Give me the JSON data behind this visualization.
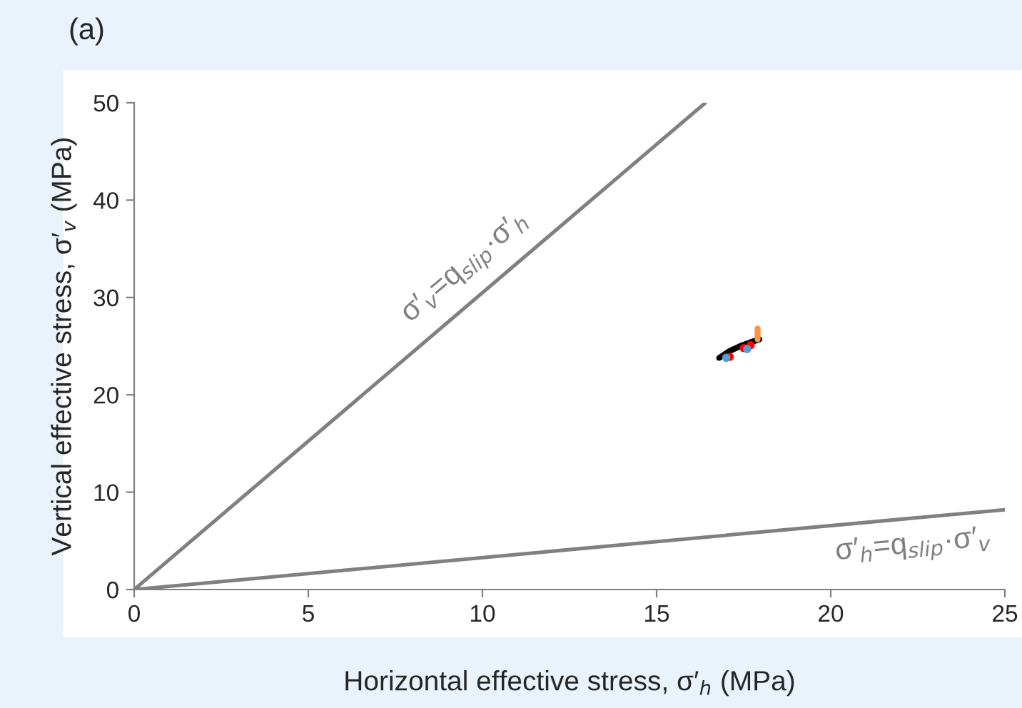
{
  "chart_data": {
    "type": "line",
    "title": "(a)",
    "xlabel": "Horizontal effective stress, σ′$_{h}$ (MPa)",
    "ylabel": "Vertical effective stress, σ′$_{v}$ (MPa)",
    "xlim": [
      0,
      25
    ],
    "ylim": [
      0,
      50
    ],
    "xticks": [
      0,
      5,
      10,
      15,
      20,
      25
    ],
    "yticks": [
      0,
      10,
      20,
      30,
      40,
      50
    ],
    "grid": false,
    "legend": false,
    "series": [
      {
        "color": "#808080",
        "x": [
          0,
          16.4
        ],
        "values": [
          0,
          50
        ]
      },
      {
        "color": "#808080",
        "x": [
          0,
          25
        ],
        "values": [
          0,
          8.2
        ]
      },
      {
        "type": "scatter",
        "color": "#ff0000",
        "x": [
          17.1,
          17.5,
          17.7
        ],
        "values": [
          23.9,
          24.8,
          25.1
        ]
      },
      {
        "type": "scatter",
        "color": "#5b9bd5",
        "x": [
          17.0,
          17.6
        ],
        "values": [
          23.8,
          24.7
        ]
      },
      {
        "color": "#000000",
        "x": [
          16.8,
          17.1,
          17.4,
          17.7,
          17.95
        ],
        "values": [
          23.8,
          24.5,
          25.0,
          25.4,
          25.7
        ]
      },
      {
        "color": "#f79646",
        "x": [
          17.9,
          17.9
        ],
        "values": [
          25.7,
          26.8
        ]
      }
    ],
    "annotations": [
      {
        "text": "σ′$_{v}$=q$_{slip}$·σ′$_{h}$",
        "x": 10,
        "y": 31
      },
      {
        "text": "σ′$_{h}$=q$_{slip}$·σ′$_{v}$",
        "x": 22.3,
        "y": 7.0
      }
    ]
  }
}
